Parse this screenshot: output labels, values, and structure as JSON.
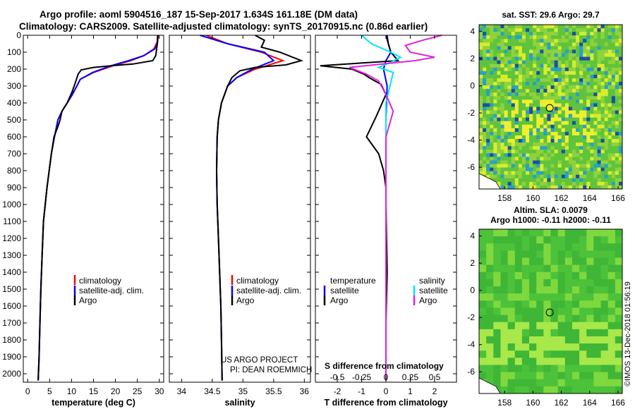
{
  "header": {
    "line1": "Argo profile: aoml 5904516_187 15-Sep-2017 1.634S 161.18E (DM data)",
    "line2": "Climatology: CARS2009. Satellite-adjusted climatology: synTS_20170915.nc (0.86d earlier)"
  },
  "credit": {
    "project": "US ARGO PROJECT",
    "pi": "PI: DEAN ROEMMICH",
    "stamp": "©IMOS 13-Dec-2018 01:56:19"
  },
  "colors": {
    "climatology": "#ff0000",
    "satellite": "#0000ff",
    "argo": "#000000",
    "sal_satellite": "#00e5ff",
    "sal_argo": "#e020e0"
  },
  "chart_data": [
    {
      "type": "line",
      "id": "temperature",
      "xlabel": "temperature (deg C)",
      "xlim": [
        -1,
        31
      ],
      "ylim": [
        2050,
        0
      ],
      "xticks": [
        0,
        5,
        10,
        15,
        20,
        25,
        30
      ],
      "xtick_labels": [
        "0",
        "5",
        "10",
        "15",
        "20",
        "25",
        "30"
      ],
      "yticks": [
        0,
        100,
        200,
        300,
        400,
        500,
        600,
        700,
        800,
        900,
        1000,
        1100,
        1200,
        1300,
        1400,
        1500,
        1600,
        1700,
        1800,
        1900,
        2000
      ],
      "ytick_labels": [
        "0",
        "100",
        "200",
        "300",
        "400",
        "500",
        "600",
        "700",
        "800",
        "900",
        "1000",
        "1100",
        "1200",
        "1300",
        "1400",
        "1500",
        "1600",
        "1700",
        "1800",
        "1900",
        "2000"
      ],
      "legend": [
        "climatology",
        "satellite-adj. clim.",
        "Argo"
      ],
      "series": [
        {
          "name": "climatology",
          "color": "#ff0000",
          "x": [
            29.6,
            29.5,
            28.8,
            26.5,
            23.5,
            19.5,
            15,
            12,
            11.2,
            10.2,
            9,
            7.8,
            6.9,
            6.1,
            5.4,
            4.9,
            4.4,
            4.0,
            3.6,
            3.3,
            3.0,
            2.8,
            2.6,
            2.4
          ],
          "y": [
            0,
            40,
            80,
            120,
            150,
            180,
            220,
            260,
            300,
            350,
            400,
            450,
            500,
            600,
            700,
            800,
            900,
            1000,
            1100,
            1300,
            1500,
            1700,
            1900,
            2040
          ]
        },
        {
          "name": "satellite-adj. clim.",
          "color": "#0000ff",
          "x": [
            29.7,
            29.6,
            29,
            26.5,
            23,
            19,
            14.8,
            12,
            11.2,
            10.2,
            9,
            7.8,
            6.9,
            6.1,
            5.4,
            4.9,
            4.4,
            4.0,
            3.6,
            3.3,
            3.0,
            2.8,
            2.6,
            2.4
          ],
          "y": [
            0,
            40,
            80,
            120,
            150,
            180,
            220,
            260,
            300,
            350,
            400,
            450,
            500,
            600,
            700,
            800,
            900,
            1000,
            1100,
            1300,
            1500,
            1700,
            1900,
            2040
          ]
        },
        {
          "name": "Argo",
          "color": "#000000",
          "x": [
            29.7,
            29.6,
            29.4,
            29.2,
            28.5,
            24,
            19,
            15,
            12.2,
            11.5,
            11,
            10.2,
            9,
            7.8,
            7.4,
            6.9,
            6.0,
            5.4,
            4.9,
            4.4,
            4.0,
            3.6,
            3.3,
            3.0,
            2.8,
            2.6,
            2.4
          ],
          "y": [
            0,
            40,
            80,
            120,
            150,
            170,
            180,
            190,
            205,
            230,
            270,
            330,
            400,
            450,
            500,
            540,
            600,
            700,
            800,
            900,
            1000,
            1100,
            1300,
            1500,
            1700,
            1900,
            2040
          ]
        }
      ]
    },
    {
      "type": "line",
      "id": "salinity",
      "xlabel": "salinity",
      "xlim": [
        33.8,
        36.1
      ],
      "ylim": [
        2050,
        0
      ],
      "xticks": [
        34,
        34.5,
        35,
        35.5,
        36
      ],
      "xtick_labels": [
        "34",
        "34.5",
        "35",
        "35.5",
        "36"
      ],
      "legend": [
        "climatology",
        "satellite-adj. clim.",
        "Argo"
      ],
      "series": [
        {
          "name": "climatology",
          "color": "#ff0000",
          "x": [
            34.4,
            34.75,
            35.3,
            35.65,
            35.2,
            34.9,
            34.75,
            34.65,
            34.6,
            34.58,
            34.57,
            34.58,
            34.6,
            34.62,
            34.64,
            34.65,
            34.66
          ],
          "y": [
            0,
            50,
            100,
            150,
            200,
            250,
            300,
            400,
            500,
            600,
            800,
            1000,
            1200,
            1400,
            1600,
            1800,
            2040
          ]
        },
        {
          "name": "satellite-adj. clim.",
          "color": "#0000ff",
          "x": [
            34.3,
            34.75,
            35.35,
            35.5,
            35.15,
            34.9,
            34.75,
            34.65,
            34.6,
            34.58,
            34.57,
            34.58,
            34.6,
            34.62,
            34.64,
            34.65,
            34.66
          ],
          "y": [
            0,
            50,
            100,
            150,
            200,
            250,
            300,
            400,
            500,
            600,
            800,
            1000,
            1200,
            1400,
            1600,
            1800,
            2040
          ]
        },
        {
          "name": "Argo",
          "color": "#000000",
          "x": [
            35.2,
            35.35,
            35.3,
            35.6,
            35.95,
            35.7,
            35.2,
            34.95,
            34.82,
            34.75,
            34.65,
            34.6,
            34.58,
            34.57,
            34.58,
            34.6,
            34.62,
            34.64,
            34.65,
            34.66
          ],
          "y": [
            0,
            30,
            70,
            100,
            150,
            175,
            190,
            210,
            250,
            300,
            400,
            500,
            600,
            800,
            1000,
            1200,
            1400,
            1600,
            1800,
            2040
          ]
        }
      ]
    },
    {
      "type": "line",
      "id": "difference",
      "xlabel": "T difference from climatology",
      "xlabel_top": "S difference from climatology",
      "xlim": [
        -2.9,
        2.9
      ],
      "ylim": [
        2050,
        0
      ],
      "xticks": [
        -2,
        -1,
        0,
        1,
        2
      ],
      "xtick_labels": [
        "-2",
        "-1",
        "0",
        "1",
        "2"
      ],
      "xticks_top": [
        -0.5,
        -0.25,
        0,
        0.25,
        0.5
      ],
      "xtick_labels_top": [
        "-0.5",
        "-0.25",
        "0",
        "0.25",
        "0.5"
      ],
      "legend_temperature": {
        "heading": "temperature",
        "items": [
          "satellite",
          "Argo"
        ]
      },
      "legend_salinity": {
        "heading": "salinity",
        "items": [
          "satellite",
          "Argo"
        ]
      },
      "series": [
        {
          "name": "temperature satellite",
          "color": "#0000ff",
          "x": [
            0.05,
            0.1,
            0.2,
            0,
            -0.1,
            0.05,
            0,
            0,
            0,
            0
          ],
          "y": [
            0,
            50,
            100,
            150,
            200,
            300,
            500,
            1000,
            1500,
            2040
          ]
        },
        {
          "name": "temperature Argo",
          "color": "#000000",
          "x": [
            0,
            0.1,
            0.2,
            0.5,
            -2.7,
            -1.4,
            -0.9,
            -0.7,
            -0.2,
            0,
            -0.4,
            -0.8,
            -0.3,
            -0.1,
            0,
            0,
            0.05,
            0,
            0
          ],
          "y": [
            0,
            50,
            100,
            150,
            180,
            200,
            230,
            250,
            290,
            350,
            480,
            600,
            700,
            800,
            900,
            1000,
            1400,
            1700,
            2040
          ]
        },
        {
          "name": "salinity satellite",
          "color": "#00e5ff",
          "x": [
            -1.0,
            -0.6,
            0.2,
            0.6,
            0.2,
            -0.3,
            0.3,
            0,
            0,
            0
          ],
          "y": [
            0,
            50,
            100,
            130,
            160,
            190,
            220,
            400,
            1000,
            2040
          ]
        },
        {
          "name": "salinity Argo",
          "color": "#e020e0",
          "x": [
            2.3,
            1.5,
            0.8,
            1.0,
            2.0,
            1.2,
            -1.5,
            -0.8,
            -0.3,
            0,
            0.3,
            0,
            0
          ],
          "y": [
            0,
            30,
            60,
            100,
            130,
            150,
            190,
            230,
            270,
            350,
            450,
            600,
            2040
          ]
        }
      ]
    },
    {
      "type": "heatmap",
      "id": "sst_map",
      "title": "sat. SST: 29.6 Argo: 29.7",
      "xlim": [
        156.2,
        166.3
      ],
      "ylim": [
        -7.6,
        4.5
      ],
      "xticks": [
        158,
        160,
        162,
        164,
        166
      ],
      "xtick_labels": [
        "158",
        "160",
        "162",
        "164",
        "166"
      ],
      "yticks": [
        4,
        2,
        0,
        -2,
        -4,
        -6
      ],
      "ytick_labels": [
        "4",
        "2",
        "0",
        "-2",
        "-4",
        "-6"
      ],
      "argo_position": {
        "lon": 161.18,
        "lat": -1.634
      }
    },
    {
      "type": "heatmap",
      "id": "sla_map",
      "title": "Altim. SLA: 0.0079",
      "subtitle": "Argo h1000: -0.11 h2000: -0.11",
      "xlim": [
        156.2,
        166.3
      ],
      "ylim": [
        -7.6,
        4.5
      ],
      "xticks": [
        158,
        160,
        162,
        164,
        166
      ],
      "xtick_labels": [
        "158",
        "160",
        "162",
        "164",
        "166"
      ],
      "yticks": [
        4,
        2,
        0,
        -2,
        -4,
        -6
      ],
      "ytick_labels": [
        "4",
        "2",
        "0",
        "-2",
        "-4",
        "-6"
      ],
      "argo_position": {
        "lon": 161.18,
        "lat": -1.634
      }
    }
  ]
}
